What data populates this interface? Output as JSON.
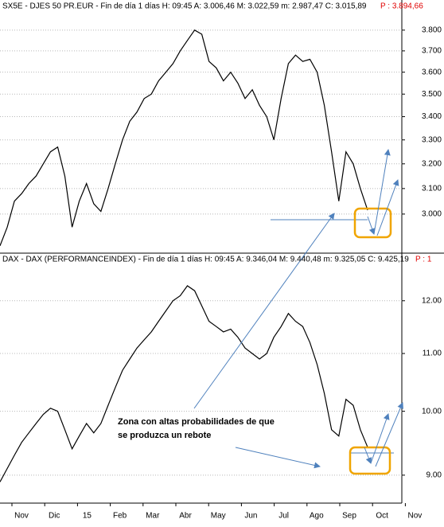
{
  "chart_data": [
    {
      "type": "line",
      "title": "SX5E - DJES 50 PR.EUR - Fin de día 1 días H: 09:45 A: 3.006,46 M: 3.022,59 m: 2.987,47 C: 3.015,89",
      "title_extra": "P : 3.894,66",
      "color": "#000000",
      "log": true,
      "grid": true,
      "ylim": [
        2853,
        3950
      ],
      "yticks": [
        {
          "value": 3000,
          "label": "3.000"
        },
        {
          "value": 3100,
          "label": "3.100"
        },
        {
          "value": 3200,
          "label": "3.200"
        },
        {
          "value": 3300,
          "label": "3.300"
        },
        {
          "value": 3400,
          "label": "3.400"
        },
        {
          "value": 3500,
          "label": "3.500"
        },
        {
          "value": 3600,
          "label": "3.600"
        },
        {
          "value": 3700,
          "label": "3.700"
        },
        {
          "value": 3800,
          "label": "3.800"
        }
      ],
      "values": [
        2880,
        2950,
        3050,
        3080,
        3120,
        3150,
        3200,
        3250,
        3270,
        3150,
        2950,
        3050,
        3120,
        3040,
        3010,
        3100,
        3200,
        3300,
        3380,
        3420,
        3480,
        3500,
        3560,
        3600,
        3640,
        3700,
        3750,
        3800,
        3780,
        3650,
        3620,
        3560,
        3600,
        3550,
        3480,
        3520,
        3450,
        3400,
        3300,
        3480,
        3640,
        3680,
        3650,
        3660,
        3600,
        3450,
        3250,
        3050,
        3250,
        3200,
        3100,
        3015
      ]
    },
    {
      "type": "line",
      "title": "DAX - DAX (PERFORMANCEINDEX) - Fin de día 1 días H: 09:45 A: 9.346,04 M: 9.440,48 m: 9.325,05 C: 9.425,19",
      "title_extra": "P : 1",
      "color": "#000000",
      "log": true,
      "grid": true,
      "ylim": [
        8617,
        12980
      ],
      "yticks": [
        {
          "value": 9000,
          "label": "9.00"
        },
        {
          "value": 10000,
          "label": "10.00"
        },
        {
          "value": 11000,
          "label": "11.00"
        },
        {
          "value": 12000,
          "label": "12.00"
        }
      ],
      "values": [
        8900,
        9100,
        9300,
        9500,
        9650,
        9800,
        9950,
        10050,
        10000,
        9700,
        9400,
        9600,
        9800,
        9650,
        9800,
        10100,
        10400,
        10700,
        10900,
        11100,
        11250,
        11400,
        11600,
        11800,
        12000,
        12100,
        12300,
        12200,
        11900,
        11600,
        11500,
        11400,
        11450,
        11300,
        11100,
        11000,
        10900,
        11000,
        11300,
        11500,
        11750,
        11600,
        11500,
        11200,
        10800,
        10300,
        9700,
        9600,
        10200,
        10100,
        9700,
        9425
      ]
    }
  ],
  "x_axis": {
    "labels": [
      "Nov",
      "Dic",
      "15",
      "Feb",
      "Mar",
      "Abr",
      "May",
      "Jun",
      "Jul",
      "Ago",
      "Sep",
      "Oct",
      "Nov"
    ]
  },
  "annotation": [
    "Zona con altas probabilidades de que",
    "se produzca un rebote"
  ]
}
